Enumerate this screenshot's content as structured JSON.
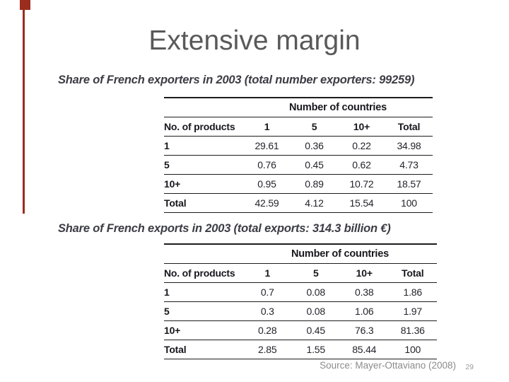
{
  "slide": {
    "title": "Extensive margin",
    "source": "Source: Mayer-Ottaviano (2008)",
    "page_number": "29",
    "accent_color": "#9B2D1E"
  },
  "tables": [
    {
      "caption": "Share of French exporters in 2003 (total number exporters: 99259)",
      "span_header": "Number of countries",
      "columns": [
        "No. of products",
        "1",
        "5",
        "10+",
        "Total"
      ],
      "rows": [
        {
          "label": "1",
          "values": [
            "29.61",
            "0.36",
            "0.22",
            "34.98"
          ]
        },
        {
          "label": "5",
          "values": [
            "0.76",
            "0.45",
            "0.62",
            "4.73"
          ]
        },
        {
          "label": "10+",
          "values": [
            "0.95",
            "0.89",
            "10.72",
            "18.57"
          ]
        },
        {
          "label": "Total",
          "values": [
            "42.59",
            "4.12",
            "15.54",
            "100"
          ]
        }
      ]
    },
    {
      "caption": "Share of French exports in 2003 (total exports: 314.3 billion €)",
      "span_header": "Number of countries",
      "columns": [
        "No. of products",
        "1",
        "5",
        "10+",
        "Total"
      ],
      "rows": [
        {
          "label": "1",
          "values": [
            "0.7",
            "0.08",
            "0.38",
            "1.86"
          ]
        },
        {
          "label": "5",
          "values": [
            "0.3",
            "0.08",
            "1.06",
            "1.97"
          ]
        },
        {
          "label": "10+",
          "values": [
            "0.28",
            "0.45",
            "76.3",
            "81.36"
          ]
        },
        {
          "label": "Total",
          "values": [
            "2.85",
            "1.55",
            "85.44",
            "100"
          ]
        }
      ]
    }
  ]
}
